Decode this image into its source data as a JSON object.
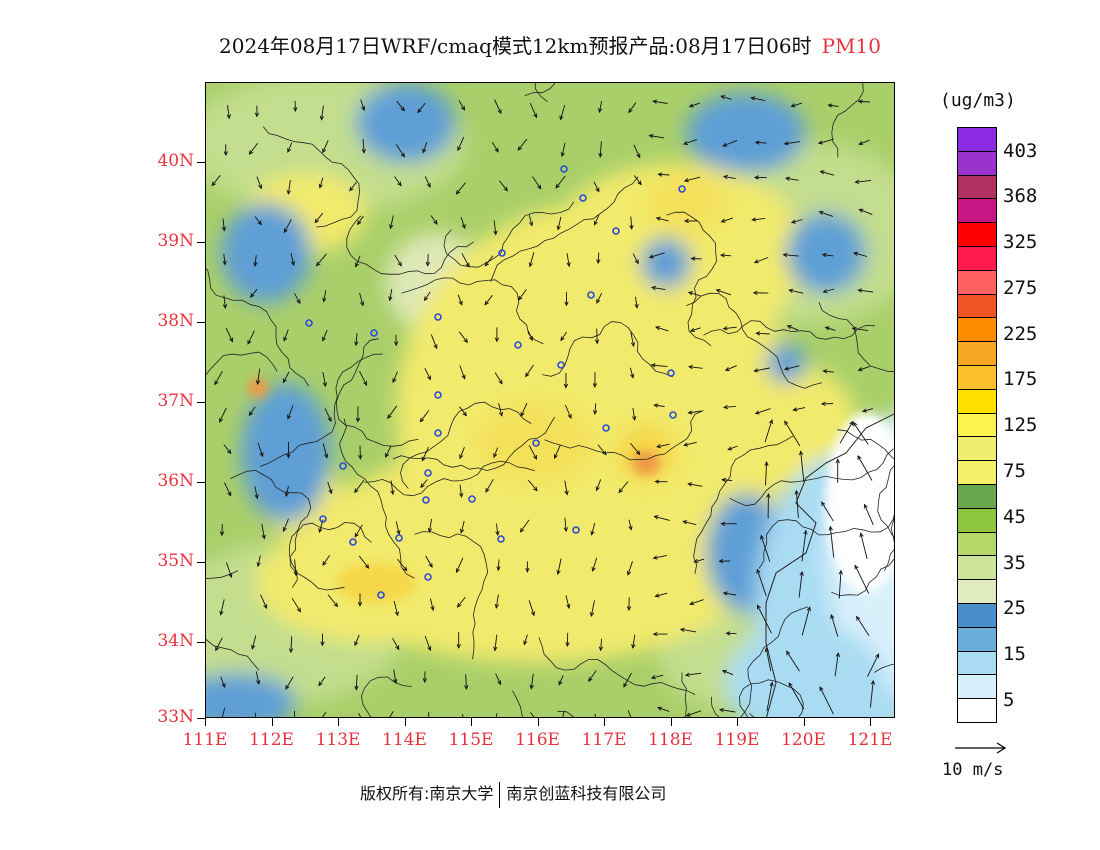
{
  "title": {
    "main": "2024年08月17日WRF/cmaq模式12km预报产品:08月17日06时",
    "pollutant": "PM10"
  },
  "axes": {
    "lat_labels": [
      "40N",
      "39N",
      "38N",
      "37N",
      "36N",
      "35N",
      "34N",
      "33N"
    ],
    "lon_labels": [
      "111E",
      "112E",
      "113E",
      "114E",
      "115E",
      "116E",
      "117E",
      "118E",
      "119E",
      "120E",
      "121E"
    ]
  },
  "legend": {
    "unit": "(ug/m3)",
    "labels": [
      "403",
      "368",
      "325",
      "275",
      "225",
      "175",
      "125",
      "75",
      "45",
      "35",
      "25",
      "15",
      "5"
    ],
    "colors": [
      "#8a2be2",
      "#9a32cd",
      "#b03060",
      "#c71585",
      "#ff0000",
      "#ff1a4b",
      "#ff6060",
      "#ee5522",
      "#ff8c00",
      "#f5a623",
      "#fbc02d",
      "#ffe000",
      "#fff44f",
      "#f0ee70",
      "#f4f06a",
      "#6aa84f",
      "#8dc63f",
      "#b5d86a",
      "#cde59a",
      "#e0ebc0",
      "#4a8fc9",
      "#6aaedc",
      "#a9dbf3",
      "#d6effa",
      "#ffffff"
    ]
  },
  "vector_reference": {
    "label": "10 m/s"
  },
  "footer": {
    "left": "版权所有:南京大学",
    "right": "南京创蓝科技有限公司"
  },
  "colors": {
    "axis_text": "#e8323c",
    "yellow": "#f2ea6c",
    "light_green": "#c7e28c",
    "green": "#8fc458",
    "blue": "#5f9fd6",
    "light_blue": "#a9dbf3",
    "pale_blue": "#d9f0fb"
  }
}
